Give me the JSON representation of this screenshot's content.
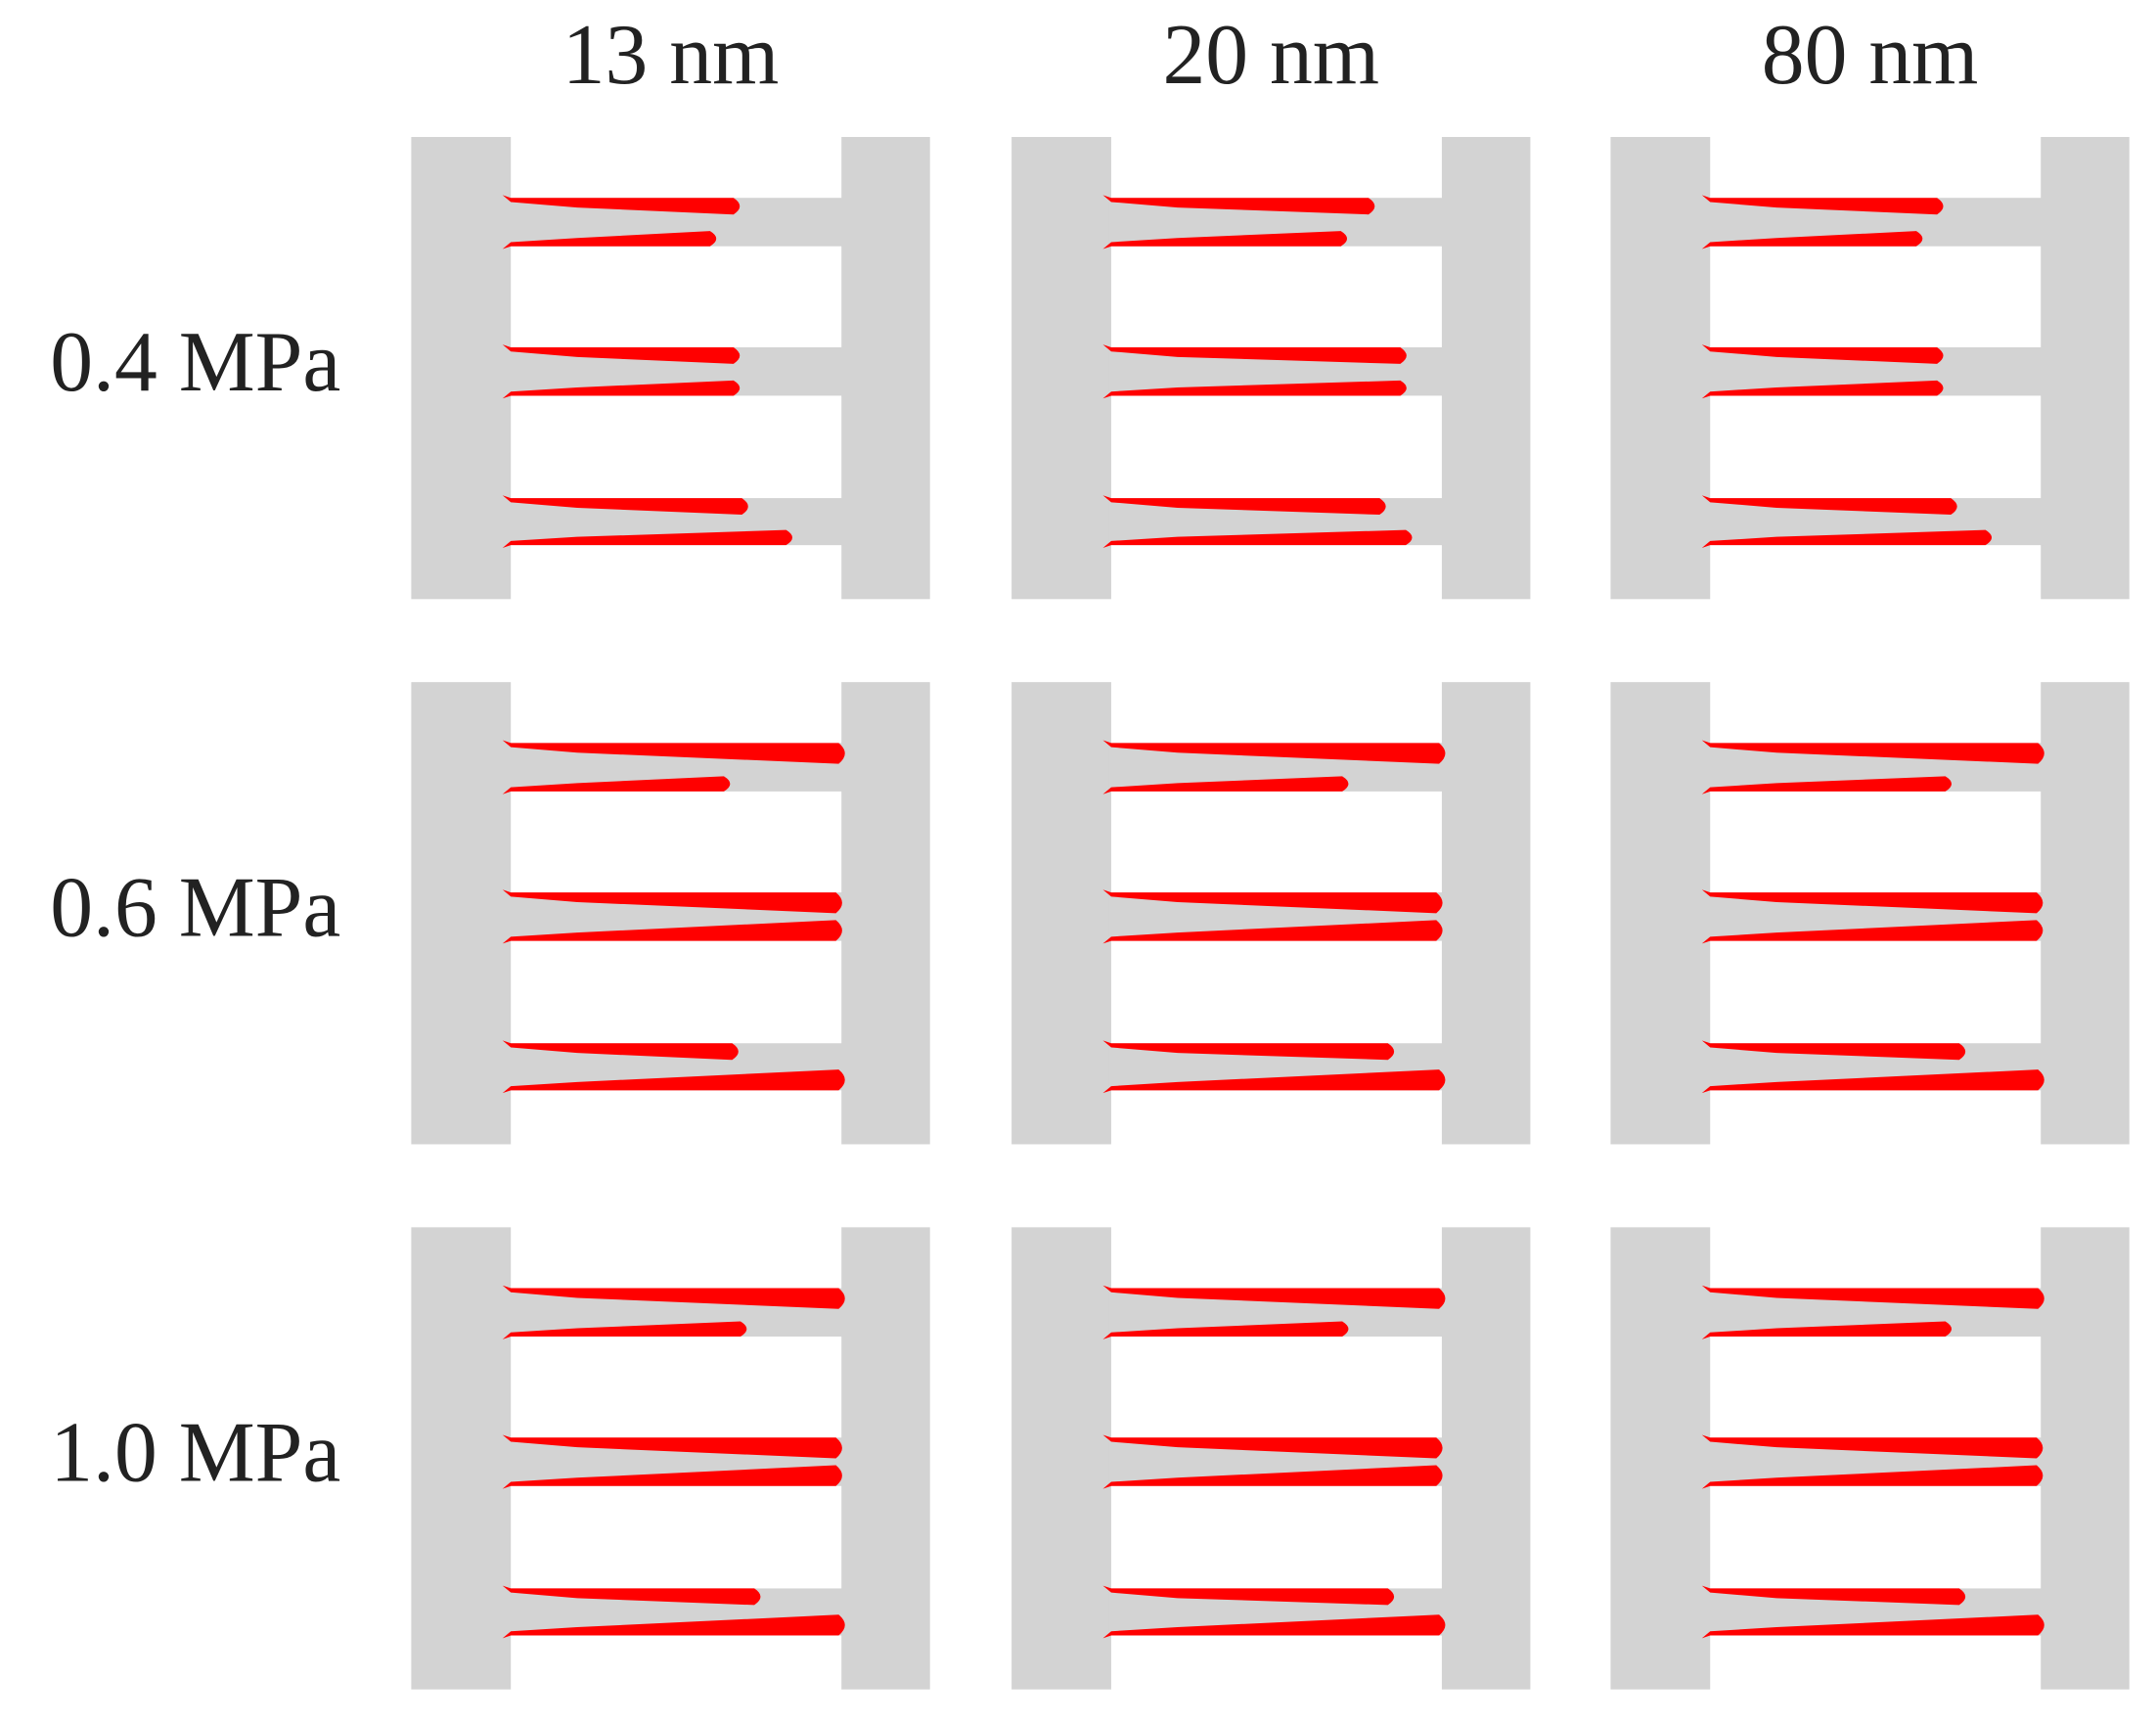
{
  "columns": [
    "13 nm",
    "20 nm",
    "80 nm"
  ],
  "rows": [
    "0.4 MPa",
    "0.6 MPa",
    "1.0 MPa"
  ]
}
